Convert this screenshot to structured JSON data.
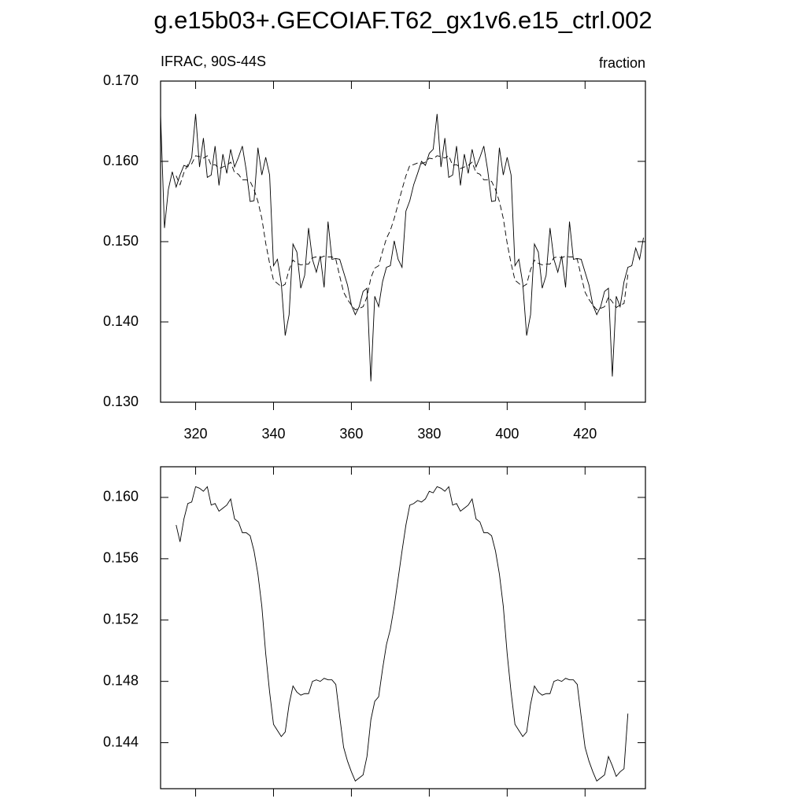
{
  "title": "g.e15b03+.GECOIAF.T62_gx1v6.e15_ctrl.002",
  "chart_data": [
    {
      "type": "line",
      "left_string": "IFRAC, 90S-44S",
      "right_string": "fraction",
      "xlim": [
        311,
        435.5
      ],
      "xticks": [
        320,
        340,
        360,
        380,
        400,
        420
      ],
      "show_xtick_labels": true,
      "ylim": [
        0.13,
        0.17
      ],
      "yticks": [
        {
          "value": 0.13,
          "label": "0.130"
        },
        {
          "value": 0.14,
          "label": "0.140"
        },
        {
          "value": 0.15,
          "label": "0.150"
        },
        {
          "value": 0.16,
          "label": "0.160"
        },
        {
          "value": 0.17,
          "label": "0.170"
        }
      ],
      "series": [
        {
          "color": "#000000",
          "dash": false,
          "x": [
            311,
            312,
            313,
            314,
            315,
            316,
            317,
            318,
            319,
            320,
            321,
            322,
            323,
            324,
            325,
            326,
            327,
            328,
            329,
            330,
            331,
            332,
            333,
            334,
            335,
            336,
            337,
            338,
            339,
            340,
            341,
            342,
            343,
            344,
            345,
            346,
            347,
            348,
            349,
            350,
            351,
            352,
            353,
            354,
            355,
            356,
            357,
            358,
            359,
            360,
            361,
            362,
            363,
            364,
            365,
            366,
            367,
            368,
            369,
            370,
            371,
            372,
            373,
            374,
            375,
            376,
            377,
            378,
            379,
            380,
            381,
            382,
            383,
            384,
            385,
            386,
            387,
            388,
            389,
            390,
            391,
            392,
            393,
            394,
            395,
            396,
            397,
            398,
            399,
            400,
            401,
            402,
            403,
            404,
            405,
            406,
            407,
            408,
            409,
            410,
            411,
            412,
            413,
            414,
            415,
            416,
            417,
            418,
            419,
            420,
            421,
            422,
            423,
            424,
            425,
            426,
            427,
            428,
            429,
            430,
            431,
            432,
            433,
            434,
            435
          ],
          "values": [
            0.1658,
            0.1517,
            0.1565,
            0.1587,
            0.1568,
            0.1583,
            0.1595,
            0.1593,
            0.1605,
            0.1659,
            0.1593,
            0.1629,
            0.158,
            0.1583,
            0.1619,
            0.157,
            0.1609,
            0.1585,
            0.1615,
            0.1593,
            0.1605,
            0.1619,
            0.1589,
            0.155,
            0.1551,
            0.1617,
            0.1583,
            0.1605,
            0.1583,
            0.147,
            0.1478,
            0.1448,
            0.1383,
            0.1409,
            0.1497,
            0.1487,
            0.1442,
            0.1458,
            0.1517,
            0.1478,
            0.1462,
            0.1482,
            0.1443,
            0.1525,
            0.1478,
            0.1479,
            0.1478,
            0.1462,
            0.1446,
            0.1421,
            0.1409,
            0.1419,
            0.1438,
            0.1442,
            0.1326,
            0.1432,
            0.1419,
            0.145,
            0.1468,
            0.147,
            0.1501,
            0.1478,
            0.1468,
            0.1538,
            0.1551,
            0.1571,
            0.1585,
            0.16,
            0.1595,
            0.161,
            0.1615,
            0.1659,
            0.1593,
            0.1629,
            0.158,
            0.1583,
            0.1619,
            0.157,
            0.1609,
            0.1585,
            0.1615,
            0.1593,
            0.1605,
            0.1619,
            0.1589,
            0.155,
            0.1551,
            0.1617,
            0.1583,
            0.1605,
            0.1583,
            0.147,
            0.1478,
            0.1448,
            0.1383,
            0.1409,
            0.1497,
            0.1487,
            0.1442,
            0.1458,
            0.1517,
            0.1478,
            0.1462,
            0.1482,
            0.1443,
            0.1525,
            0.1478,
            0.1479,
            0.1478,
            0.1462,
            0.1446,
            0.1421,
            0.1409,
            0.1419,
            0.1438,
            0.1442,
            0.1332,
            0.1432,
            0.1419,
            0.145,
            0.1468,
            0.147,
            0.1492,
            0.1478,
            0.1505
          ]
        },
        {
          "color": "#000000",
          "dash": true,
          "x": [
            315,
            316,
            317,
            318,
            319,
            320,
            321,
            322,
            323,
            324,
            325,
            326,
            327,
            328,
            329,
            330,
            331,
            332,
            333,
            334,
            335,
            336,
            337,
            338,
            339,
            340,
            341,
            342,
            343,
            344,
            345,
            346,
            347,
            348,
            349,
            350,
            351,
            352,
            353,
            354,
            355,
            356,
            357,
            358,
            359,
            360,
            361,
            362,
            363,
            364,
            365,
            366,
            367,
            368,
            369,
            370,
            371,
            372,
            373,
            374,
            375,
            376,
            377,
            378,
            379,
            380,
            381,
            382,
            383,
            384,
            385,
            386,
            387,
            388,
            389,
            390,
            391,
            392,
            393,
            394,
            395,
            396,
            397,
            398,
            399,
            400,
            401,
            402,
            403,
            404,
            405,
            406,
            407,
            408,
            409,
            410,
            411,
            412,
            413,
            414,
            415,
            416,
            417,
            418,
            419,
            420,
            421,
            422,
            423,
            424,
            425,
            426,
            427,
            428,
            429,
            430,
            431
          ],
          "values": [
            0.1582,
            0.1571,
            0.1586,
            0.1596,
            0.1597,
            0.1607,
            0.1606,
            0.1604,
            0.1607,
            0.1595,
            0.1596,
            0.1591,
            0.1593,
            0.1595,
            0.1599,
            0.1586,
            0.1584,
            0.1577,
            0.1577,
            0.1575,
            0.1565,
            0.155,
            0.1529,
            0.1498,
            0.1473,
            0.1452,
            0.1448,
            0.1444,
            0.1447,
            0.1465,
            0.1477,
            0.1473,
            0.1471,
            0.1472,
            0.1472,
            0.148,
            0.1481,
            0.148,
            0.1482,
            0.1481,
            0.1481,
            0.1478,
            0.1457,
            0.1437,
            0.1428,
            0.1421,
            0.1415,
            0.1417,
            0.1419,
            0.1431,
            0.1455,
            0.1467,
            0.147,
            0.1488,
            0.1504,
            0.1514,
            0.1529,
            0.1547,
            0.1565,
            0.1582,
            0.1595,
            0.1596,
            0.1598,
            0.1597,
            0.1599,
            0.1604,
            0.1603,
            0.1607,
            0.1606,
            0.1604,
            0.1607,
            0.1595,
            0.1596,
            0.1591,
            0.1593,
            0.1595,
            0.1599,
            0.1586,
            0.1584,
            0.1577,
            0.1577,
            0.1575,
            0.1565,
            0.155,
            0.1529,
            0.1498,
            0.1473,
            0.1452,
            0.1448,
            0.1444,
            0.1447,
            0.1465,
            0.1477,
            0.1473,
            0.1471,
            0.1472,
            0.1472,
            0.148,
            0.1481,
            0.148,
            0.1482,
            0.1481,
            0.1481,
            0.1478,
            0.1457,
            0.1437,
            0.1428,
            0.1421,
            0.1415,
            0.1417,
            0.1419,
            0.1431,
            0.1425,
            0.1418,
            0.1421,
            0.1423,
            0.1459
          ]
        }
      ]
    },
    {
      "type": "line",
      "xlim": [
        311,
        435.5
      ],
      "xticks": [
        320,
        340,
        360,
        380,
        400,
        420
      ],
      "show_xtick_labels": false,
      "ylim": [
        0.141,
        0.162
      ],
      "yticks": [
        {
          "value": 0.144,
          "label": "0.144"
        },
        {
          "value": 0.148,
          "label": "0.148"
        },
        {
          "value": 0.152,
          "label": "0.152"
        },
        {
          "value": 0.156,
          "label": "0.156"
        },
        {
          "value": 0.16,
          "label": "0.160"
        }
      ],
      "series": [
        {
          "color": "#000000",
          "dash": false,
          "x": [
            315,
            316,
            317,
            318,
            319,
            320,
            321,
            322,
            323,
            324,
            325,
            326,
            327,
            328,
            329,
            330,
            331,
            332,
            333,
            334,
            335,
            336,
            337,
            338,
            339,
            340,
            341,
            342,
            343,
            344,
            345,
            346,
            347,
            348,
            349,
            350,
            351,
            352,
            353,
            354,
            355,
            356,
            357,
            358,
            359,
            360,
            361,
            362,
            363,
            364,
            365,
            366,
            367,
            368,
            369,
            370,
            371,
            372,
            373,
            374,
            375,
            376,
            377,
            378,
            379,
            380,
            381,
            382,
            383,
            384,
            385,
            386,
            387,
            388,
            389,
            390,
            391,
            392,
            393,
            394,
            395,
            396,
            397,
            398,
            399,
            400,
            401,
            402,
            403,
            404,
            405,
            406,
            407,
            408,
            409,
            410,
            411,
            412,
            413,
            414,
            415,
            416,
            417,
            418,
            419,
            420,
            421,
            422,
            423,
            424,
            425,
            426,
            427,
            428,
            429,
            430,
            431
          ],
          "values": [
            0.1582,
            0.1571,
            0.1586,
            0.1596,
            0.1597,
            0.1607,
            0.1606,
            0.1604,
            0.1607,
            0.1595,
            0.1596,
            0.1591,
            0.1593,
            0.1595,
            0.1599,
            0.1586,
            0.1584,
            0.1577,
            0.1577,
            0.1575,
            0.1565,
            0.155,
            0.1529,
            0.1498,
            0.1473,
            0.1452,
            0.1448,
            0.1444,
            0.1447,
            0.1465,
            0.1477,
            0.1473,
            0.1471,
            0.1472,
            0.1472,
            0.148,
            0.1481,
            0.148,
            0.1482,
            0.1481,
            0.1481,
            0.1478,
            0.1457,
            0.1437,
            0.1428,
            0.1421,
            0.1415,
            0.1417,
            0.1419,
            0.1431,
            0.1455,
            0.1467,
            0.147,
            0.1488,
            0.1504,
            0.1514,
            0.1529,
            0.1547,
            0.1565,
            0.1582,
            0.1595,
            0.1596,
            0.1598,
            0.1597,
            0.1599,
            0.1604,
            0.1603,
            0.1607,
            0.1606,
            0.1604,
            0.1607,
            0.1595,
            0.1596,
            0.1591,
            0.1593,
            0.1595,
            0.1599,
            0.1586,
            0.1584,
            0.1577,
            0.1577,
            0.1575,
            0.1565,
            0.155,
            0.1529,
            0.1498,
            0.1473,
            0.1452,
            0.1448,
            0.1444,
            0.1447,
            0.1465,
            0.1477,
            0.1473,
            0.1471,
            0.1472,
            0.1472,
            0.148,
            0.1481,
            0.148,
            0.1482,
            0.1481,
            0.1481,
            0.1478,
            0.1457,
            0.1437,
            0.1428,
            0.1421,
            0.1415,
            0.1417,
            0.1419,
            0.1431,
            0.1425,
            0.1418,
            0.1421,
            0.1423,
            0.1459
          ]
        }
      ]
    }
  ]
}
